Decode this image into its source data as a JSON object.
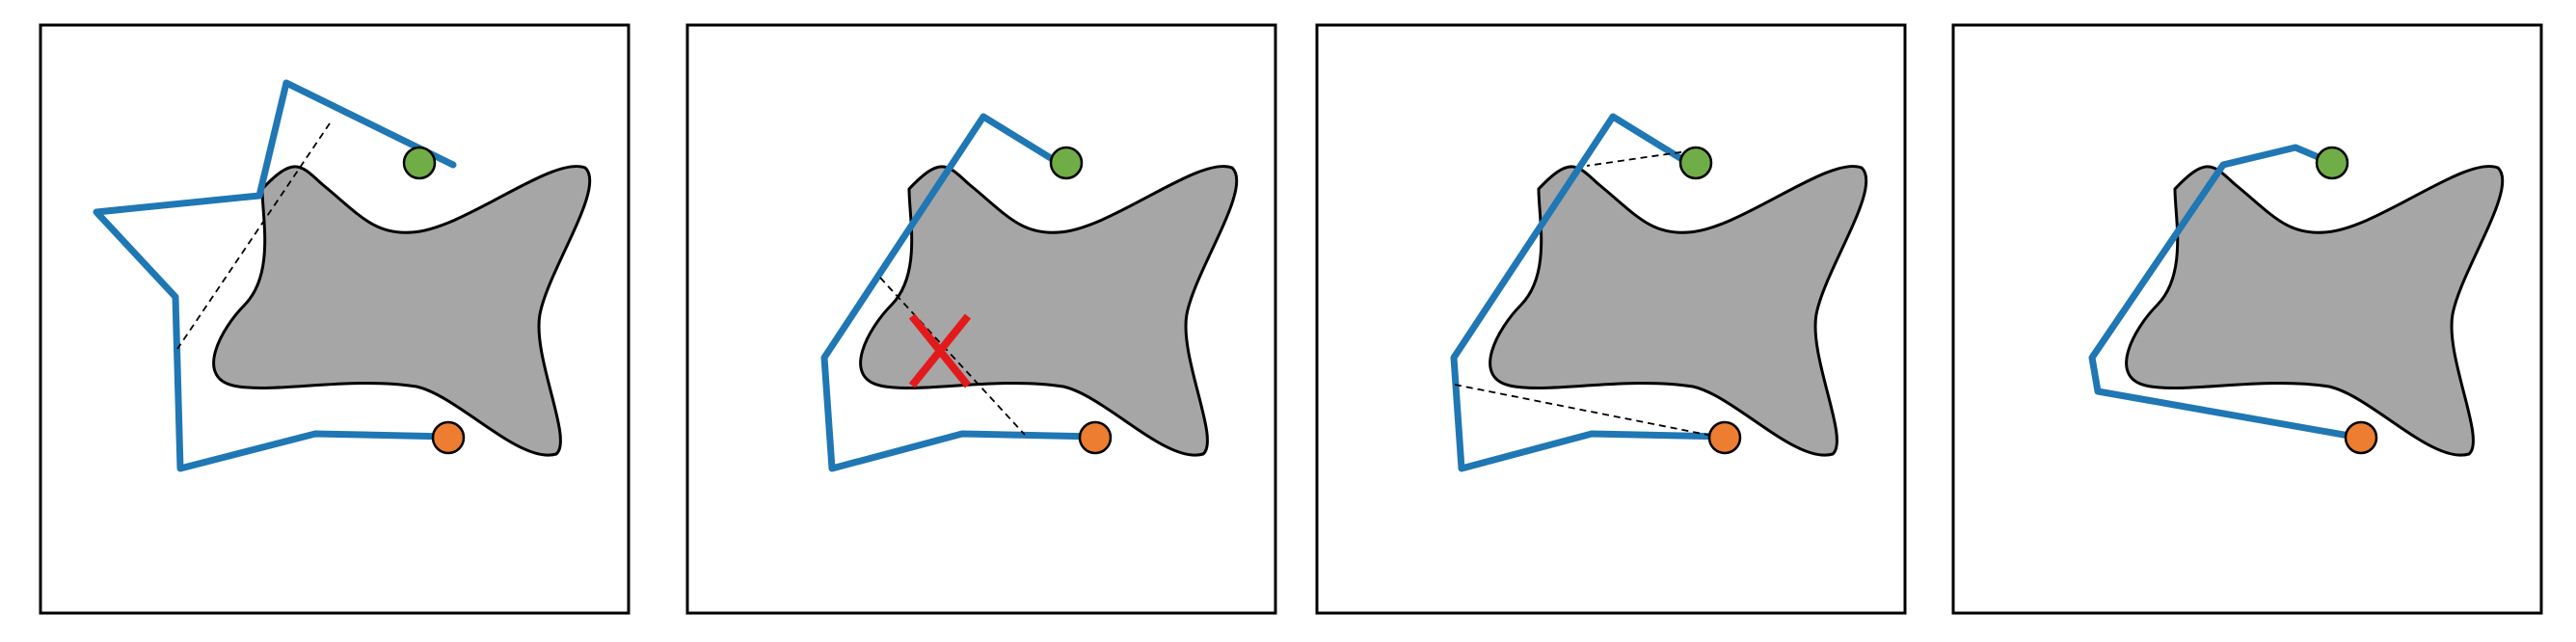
{
  "colors": {
    "path": "#1f77b4",
    "obstacle": "#a6a6a6",
    "start_node": "#70ad47",
    "goal_node": "#ed7d31",
    "reject_mark": "#e31a1c",
    "frame": "#000000"
  },
  "panels": [
    {
      "id": "panel-1",
      "step": "initial-path-with-shortcut-candidate",
      "shortcut_valid": true
    },
    {
      "id": "panel-2",
      "step": "shortcut-collides-with-obstacle",
      "shortcut_valid": false,
      "icon": "x-mark-icon"
    },
    {
      "id": "panel-3",
      "step": "valid-shortcuts-found",
      "shortcut_valid": true
    },
    {
      "id": "panel-4",
      "step": "smoothed-path",
      "shortcut_valid": null
    }
  ]
}
